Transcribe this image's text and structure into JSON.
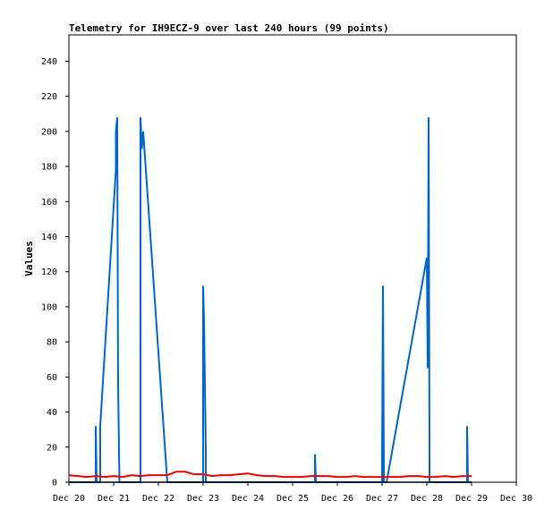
{
  "chart_data": {
    "type": "line",
    "title": "Telemetry for IH9ECZ-9 over last 240 hours (99 points)",
    "xlabel": "",
    "ylabel": "Values",
    "x_ticks": [
      "Dec 20",
      "Dec 21",
      "Dec 22",
      "Dec 23",
      "Dec 24",
      "Dec 25",
      "Dec 26",
      "Dec 27",
      "Dec 28",
      "Dec 29",
      "Dec 30"
    ],
    "xlim": [
      0,
      10
    ],
    "y_ticks": [
      0,
      20,
      40,
      60,
      80,
      100,
      120,
      140,
      160,
      180,
      200,
      220,
      240
    ],
    "ylim": [
      0,
      255
    ],
    "grid": false,
    "legend": "none",
    "series": [
      {
        "color": "#0066cc",
        "x": [
          0.0,
          0.6,
          0.6,
          0.62,
          0.7,
          0.7,
          1.05,
          1.05,
          1.08,
          1.1,
          1.13,
          1.13,
          1.6,
          1.6,
          1.63,
          1.66,
          2.2,
          2.2,
          2.6,
          2.6,
          3.0,
          3.0,
          3.02,
          3.04,
          3.06,
          3.06,
          3.1,
          3.1,
          5.5,
          5.5,
          5.52,
          5.52,
          7.0,
          7.0,
          7.02,
          7.04,
          7.04,
          7.1,
          8.0,
          8.02,
          8.04,
          8.06,
          8.06,
          8.3,
          8.3,
          8.9,
          8.9,
          8.92,
          9.0
        ],
        "y": [
          0,
          0,
          32,
          0,
          0,
          32,
          178,
          200,
          208,
          55,
          0,
          0,
          0,
          208,
          190,
          200,
          0,
          0,
          0,
          0,
          0,
          112,
          93,
          55,
          18,
          0,
          0,
          0,
          0,
          16,
          0,
          0,
          0,
          16,
          112,
          5,
          0,
          0,
          128,
          65,
          208,
          12,
          0,
          0,
          0,
          0,
          32,
          0,
          0
        ]
      },
      {
        "color": "#ee0000",
        "x": [
          0.0,
          0.2,
          0.4,
          0.6,
          0.8,
          1.0,
          1.2,
          1.4,
          1.6,
          1.8,
          2.0,
          2.2,
          2.4,
          2.6,
          2.8,
          3.0,
          3.2,
          3.4,
          3.6,
          3.8,
          4.0,
          4.2,
          4.4,
          4.6,
          4.8,
          5.0,
          5.2,
          5.4,
          5.6,
          5.8,
          6.0,
          6.2,
          6.4,
          6.6,
          6.8,
          7.0,
          7.2,
          7.4,
          7.6,
          7.8,
          8.0,
          8.2,
          8.4,
          8.6,
          8.8,
          9.0
        ],
        "y": [
          4,
          3.5,
          3,
          3.5,
          3,
          3.5,
          3,
          4,
          3.5,
          4,
          4,
          4,
          6,
          6,
          4.5,
          4.5,
          3.5,
          4,
          4,
          4.5,
          5,
          4,
          3.5,
          3.5,
          3,
          3,
          3,
          3.5,
          3.5,
          3.5,
          3,
          3,
          3.5,
          3,
          3,
          3,
          3,
          3,
          3.5,
          3.5,
          3,
          3,
          3.5,
          3,
          3.5,
          3.5
        ]
      }
    ]
  }
}
